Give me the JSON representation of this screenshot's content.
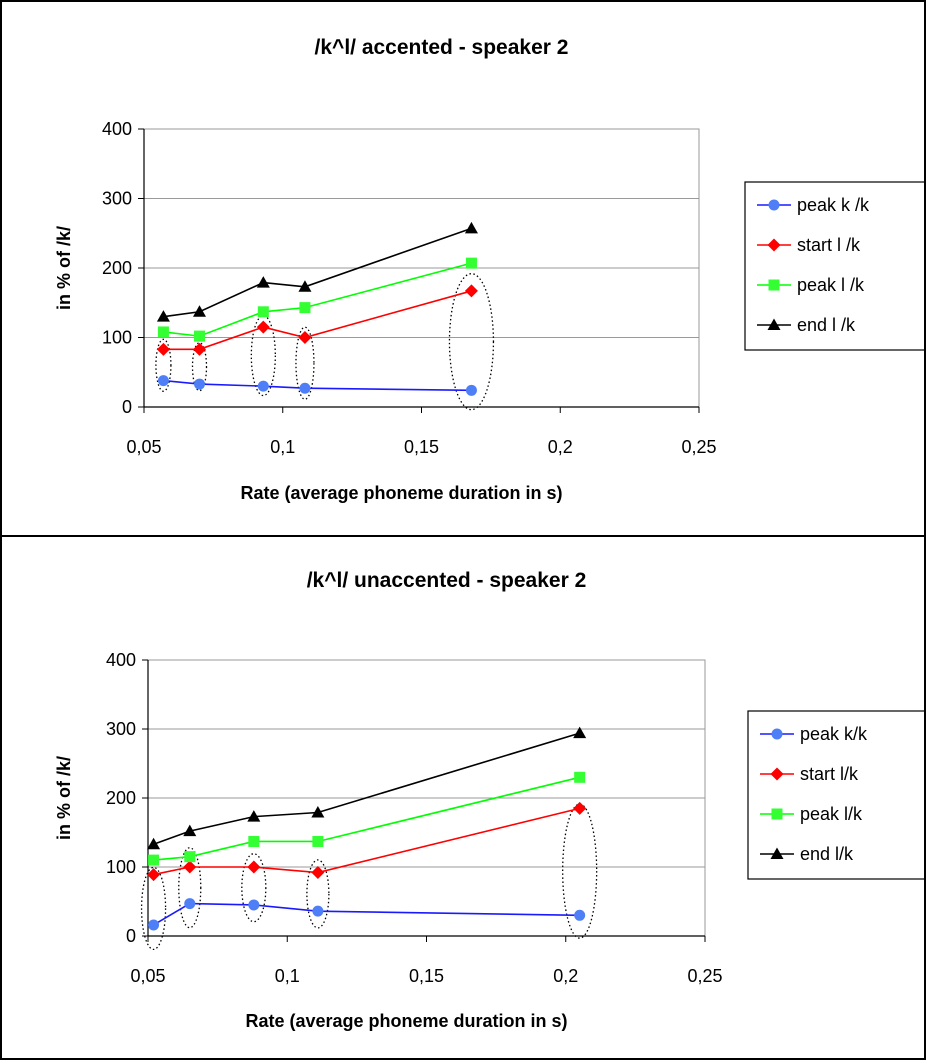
{
  "chart_data": [
    {
      "type": "line",
      "title": "/k^l/ accented - speaker 2",
      "xlabel": "Rate (average phoneme duration in s)",
      "ylabel": "in % of /k/",
      "xlim": [
        0.05,
        0.25
      ],
      "ylim": [
        0,
        400
      ],
      "x_ticks": [
        "0,05",
        "0,1",
        "0,15",
        "0,2",
        "0,25"
      ],
      "y_ticks": [
        "0",
        "100",
        "200",
        "300",
        "400"
      ],
      "grid": "horizontal",
      "legend_position": "right",
      "x": [
        0.057,
        0.07,
        0.093,
        0.108,
        0.168
      ],
      "series": [
        {
          "name": "peak k /k",
          "color": "#1a1aff",
          "marker": "circle",
          "marker_color": "#4f7ff7",
          "values": [
            38,
            33,
            30,
            27,
            24
          ]
        },
        {
          "name": "start l /k",
          "color": "#ff0000",
          "marker": "diamond",
          "marker_color": "#ff0000",
          "values": [
            83,
            83,
            115,
            100,
            167
          ]
        },
        {
          "name": "peak l /k",
          "color": "#00ff00",
          "marker": "square",
          "marker_color": "#33ff33",
          "values": [
            108,
            102,
            137,
            143,
            207
          ]
        },
        {
          "name": "end l /k",
          "color": "#000000",
          "marker": "triangle",
          "marker_color": "#000000",
          "values": [
            130,
            137,
            179,
            173,
            257
          ]
        }
      ]
    },
    {
      "type": "line",
      "title": "/k^l/ unaccented - speaker 2",
      "xlabel": "Rate (average phoneme duration in s)",
      "ylabel": "in % of /k/",
      "xlim": [
        0.05,
        0.25
      ],
      "ylim": [
        0,
        400
      ],
      "x_ticks": [
        "0,05",
        "0,1",
        "0,15",
        "0,2",
        "0,25"
      ],
      "y_ticks": [
        "0",
        "100",
        "200",
        "300",
        "400"
      ],
      "grid": "horizontal",
      "legend_position": "right",
      "x": [
        0.052,
        0.065,
        0.088,
        0.111,
        0.205
      ],
      "series": [
        {
          "name": "peak k/k",
          "color": "#1a1aff",
          "marker": "circle",
          "marker_color": "#4f7ff7",
          "values": [
            16,
            47,
            45,
            36,
            30
          ]
        },
        {
          "name": "start l/k",
          "color": "#ff0000",
          "marker": "diamond",
          "marker_color": "#ff0000",
          "values": [
            89,
            100,
            100,
            92,
            185
          ]
        },
        {
          "name": "peak l/k",
          "color": "#00ff00",
          "marker": "square",
          "marker_color": "#33ff33",
          "values": [
            110,
            115,
            137,
            137,
            230
          ]
        },
        {
          "name": "end l/k",
          "color": "#000000",
          "marker": "triangle",
          "marker_color": "#000000",
          "values": [
            133,
            152,
            173,
            179,
            294
          ]
        }
      ]
    }
  ]
}
